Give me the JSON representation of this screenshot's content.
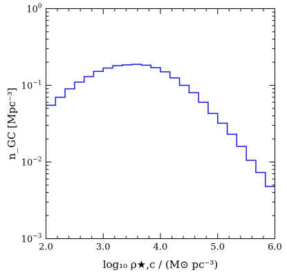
{
  "chart_data": {
    "type": "line",
    "style": "step-histogram",
    "xlabel": "log₁₀ ρ★,c / (M⊙ pc⁻³)",
    "ylabel": "n_GC [Mpc⁻³]",
    "xlim": [
      2.0,
      6.0
    ],
    "ylim": [
      0.001,
      1
    ],
    "yscale": "log",
    "grid": false,
    "x_ticks": [
      2.0,
      3.0,
      4.0,
      5.0,
      6.0
    ],
    "x_tick_labels": [
      "2.0",
      "3.0",
      "4.0",
      "5.0",
      "6.0"
    ],
    "y_ticks": [
      {
        "value": 0.001,
        "base": "10",
        "exp": "−3"
      },
      {
        "value": 0.01,
        "base": "10",
        "exp": "−2"
      },
      {
        "value": 0.1,
        "base": "10",
        "exp": "−1"
      },
      {
        "value": 1,
        "base": "10",
        "exp": "0"
      }
    ],
    "bin_edges": [
      2.0,
      2.167,
      2.333,
      2.5,
      2.667,
      2.833,
      3.0,
      3.167,
      3.333,
      3.5,
      3.667,
      3.833,
      4.0,
      4.167,
      4.333,
      4.5,
      4.667,
      4.833,
      5.0,
      5.167,
      5.333,
      5.5,
      5.667,
      5.833,
      6.0
    ],
    "series": [
      {
        "color": "#1515e6",
        "values": [
          0.055,
          0.07,
          0.09,
          0.11,
          0.13,
          0.152,
          0.168,
          0.18,
          0.185,
          0.188,
          0.183,
          0.17,
          0.15,
          0.125,
          0.1,
          0.08,
          0.06,
          0.043,
          0.032,
          0.023,
          0.016,
          0.0105,
          0.0073,
          0.0048
        ]
      }
    ]
  }
}
